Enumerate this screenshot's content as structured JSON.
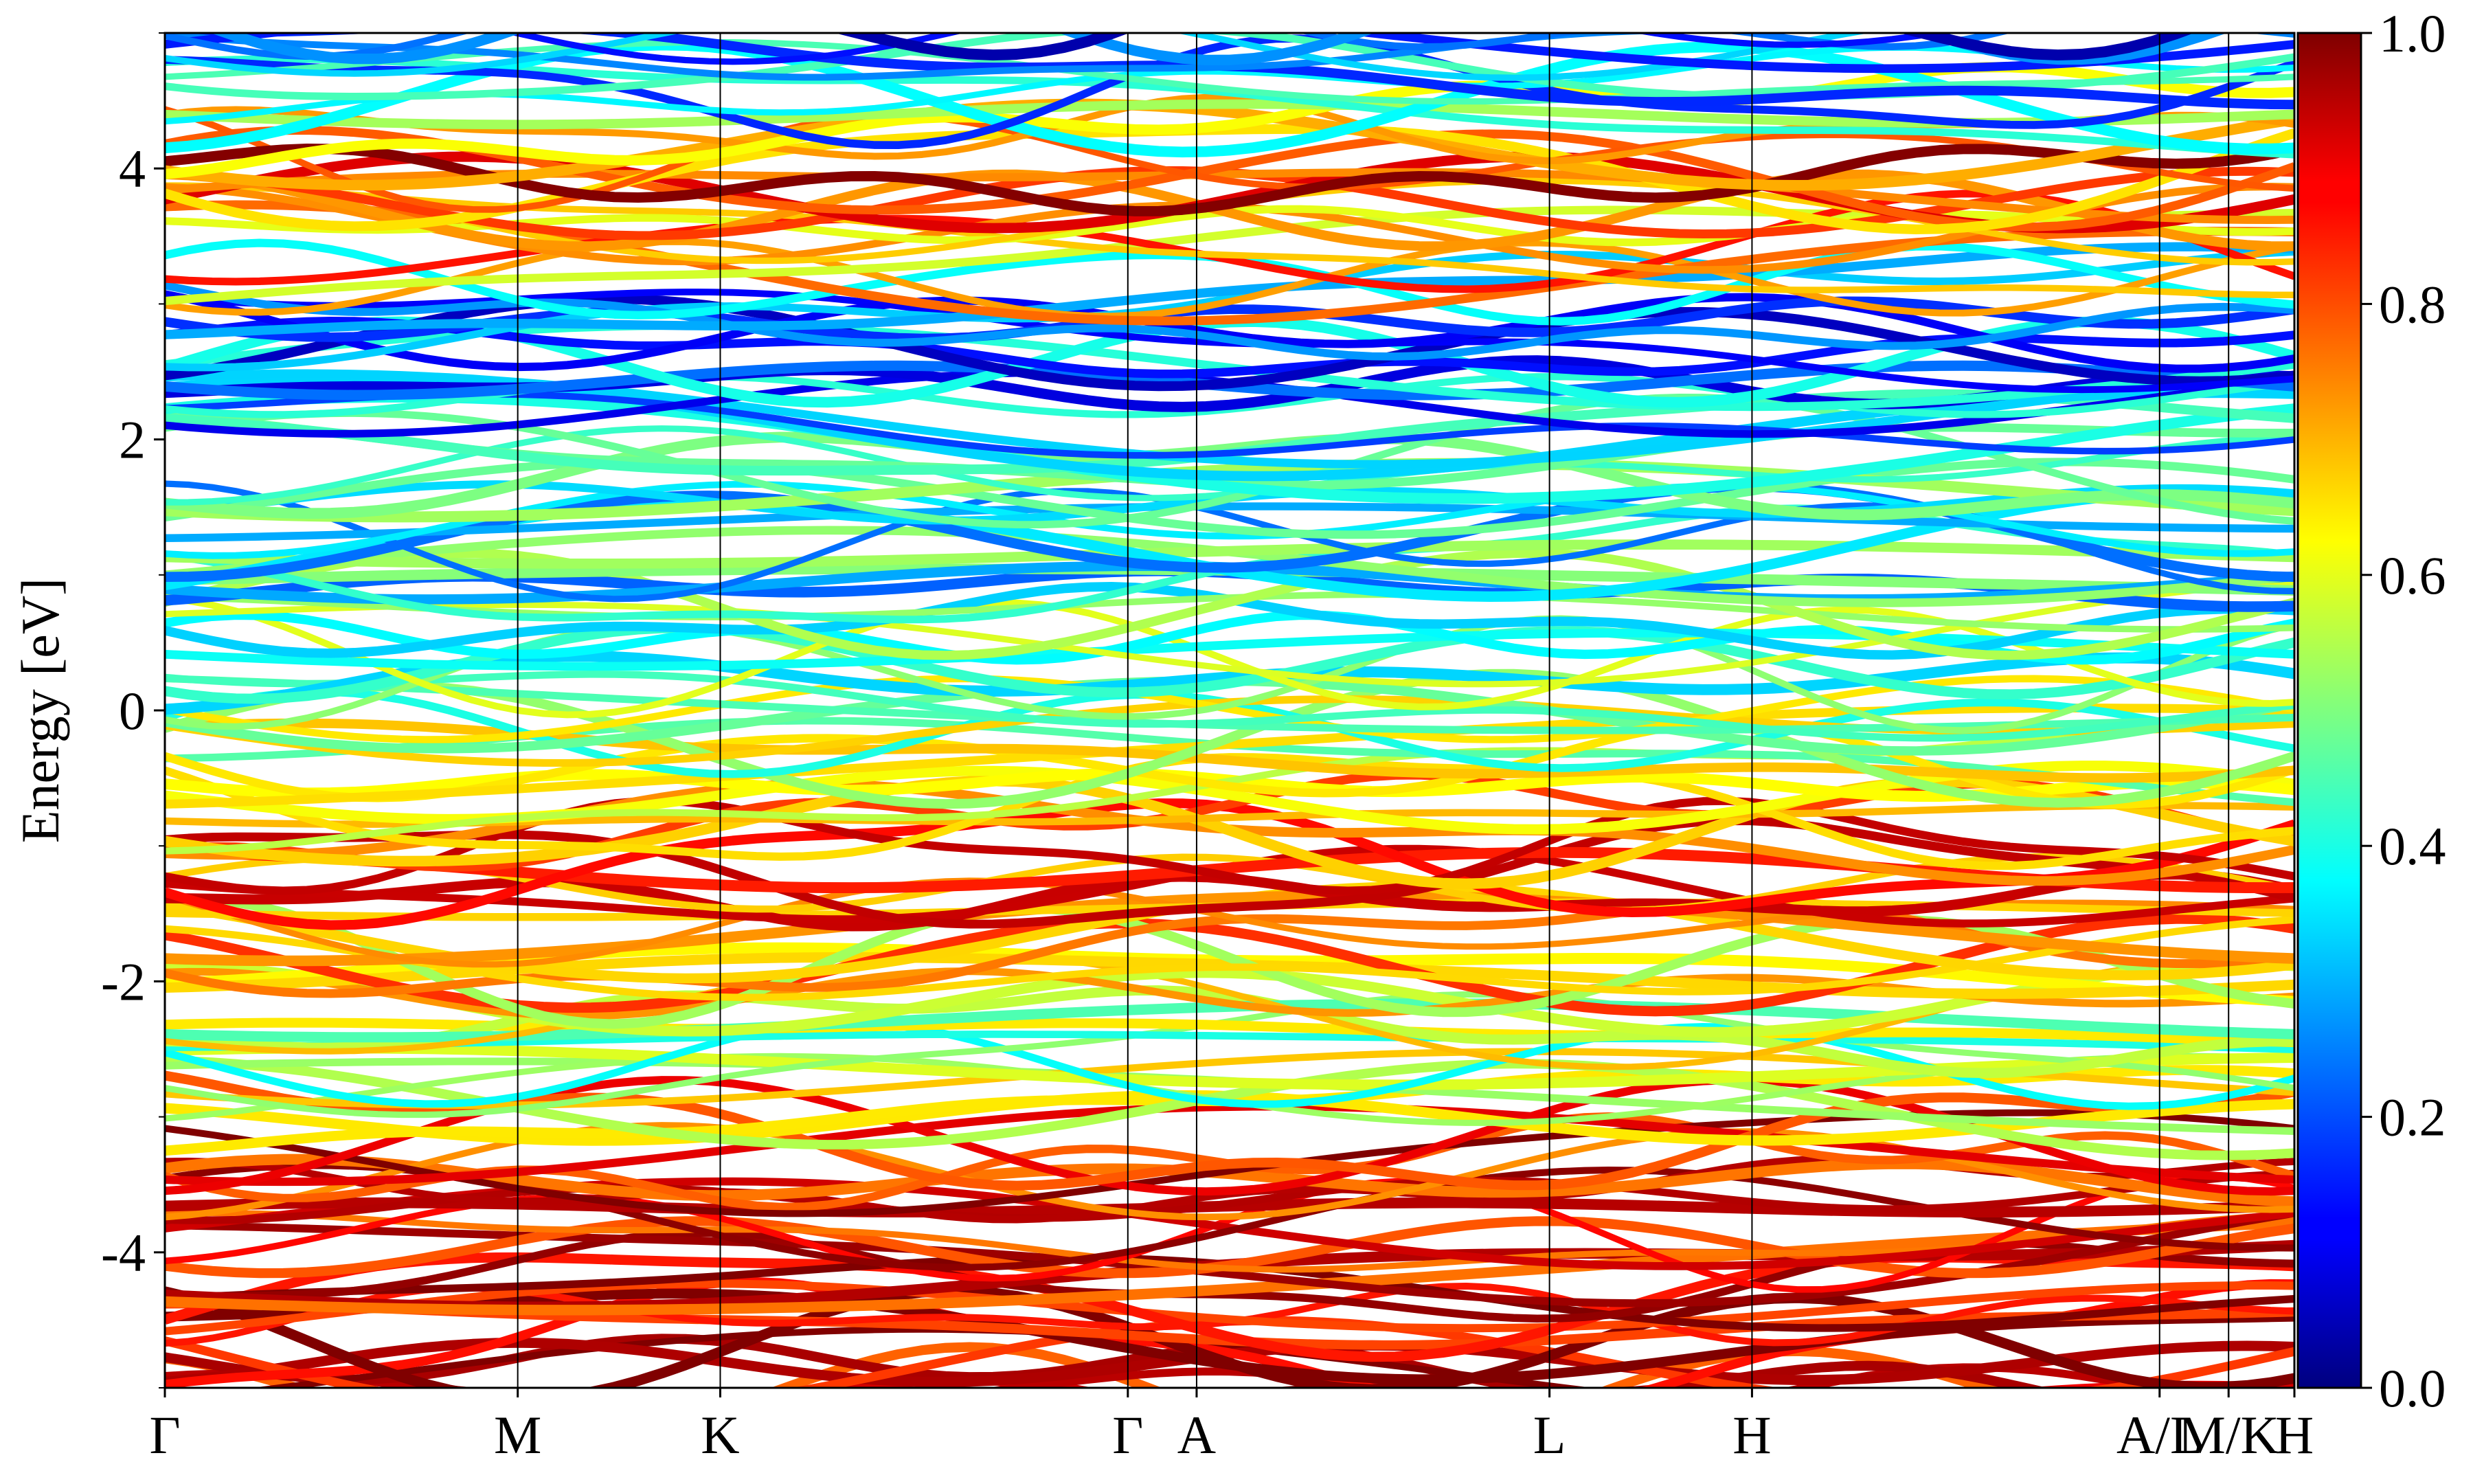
{
  "chart_data": {
    "type": "band-structure",
    "title": "",
    "ylabel": "Energy [eV]",
    "xlabel": "",
    "ylim": [
      -5,
      5
    ],
    "yticks": [
      {
        "value": 4,
        "label": "4"
      },
      {
        "value": 2,
        "label": "2"
      },
      {
        "value": 0,
        "label": "0"
      },
      {
        "value": -2,
        "label": "-2"
      },
      {
        "value": -4,
        "label": "-4"
      }
    ],
    "kpath": [
      {
        "label": "Γ",
        "pos": 0.0
      },
      {
        "label": "M",
        "pos": 0.1657
      },
      {
        "label": "K",
        "pos": 0.2608
      },
      {
        "label": "Γ",
        "pos": 0.4522
      },
      {
        "label": "A",
        "pos": 0.4845
      },
      {
        "label": "L",
        "pos": 0.6502
      },
      {
        "label": "H",
        "pos": 0.7453
      },
      {
        "label": "A/L",
        "pos": 0.9367
      },
      {
        "label": "M/K",
        "pos": 0.9691
      },
      {
        "label": "H",
        "pos": 1.0
      }
    ],
    "colorbar": {
      "colormap": "jet",
      "range": [
        0,
        1
      ],
      "ticks": [
        {
          "value": 1.0,
          "label": "1.0"
        },
        {
          "value": 0.8,
          "label": "0.8"
        },
        {
          "value": 0.6,
          "label": "0.6"
        },
        {
          "value": 0.4,
          "label": "0.4"
        },
        {
          "value": 0.2,
          "label": "0.2"
        },
        {
          "value": 0.0,
          "label": "0.0"
        }
      ]
    },
    "weight_profile": [
      {
        "energy": -5.0,
        "weight": 0.92
      },
      {
        "energy": -4.0,
        "weight": 0.92
      },
      {
        "energy": -3.1,
        "weight": 0.9
      },
      {
        "energy": -2.8,
        "weight": 0.5
      },
      {
        "energy": -2.2,
        "weight": 0.58
      },
      {
        "energy": -1.5,
        "weight": 0.78
      },
      {
        "energy": -1.0,
        "weight": 0.76
      },
      {
        "energy": -0.5,
        "weight": 0.6
      },
      {
        "energy": 0.0,
        "weight": 0.5
      },
      {
        "energy": 0.6,
        "weight": 0.45
      },
      {
        "energy": 1.0,
        "weight": 0.35
      },
      {
        "energy": 1.5,
        "weight": 0.42
      },
      {
        "energy": 2.0,
        "weight": 0.3
      },
      {
        "energy": 2.5,
        "weight": 0.25
      },
      {
        "energy": 2.9,
        "weight": 0.15
      },
      {
        "energy": 3.3,
        "weight": 0.72
      },
      {
        "energy": 3.9,
        "weight": 0.75
      },
      {
        "energy": 4.2,
        "weight": 0.88
      },
      {
        "energy": 4.5,
        "weight": 0.35
      },
      {
        "energy": 5.0,
        "weight": 0.2
      }
    ],
    "grid": false,
    "legend": "none"
  }
}
